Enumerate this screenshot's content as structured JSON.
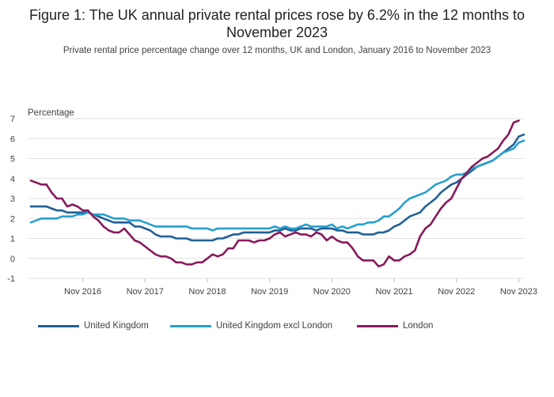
{
  "title": "Figure 1: The UK annual private rental prices rose by 6.2% in the 12 months to November 2023",
  "subtitle": "Private rental price percentage change over 12 months, UK and London, January 2016 to November 2023",
  "chart_data": {
    "type": "line",
    "ylabel": "Percentage",
    "ylim": [
      -1,
      7
    ],
    "yticks": [
      -1,
      0,
      1,
      2,
      3,
      4,
      5,
      6,
      7
    ],
    "x_tick_labels": [
      "Nov 2016",
      "Nov 2017",
      "Nov 2018",
      "Nov 2019",
      "Nov 2020",
      "Nov 2021",
      "Nov 2022",
      "Nov 2023"
    ],
    "x_tick_months": [
      10,
      22,
      34,
      46,
      58,
      70,
      82,
      94
    ],
    "x_start": "Jan 2016",
    "x_end": "Nov 2023",
    "grid": true,
    "legend_position": "bottom",
    "series": [
      {
        "name": "United Kingdom",
        "color": "#206095",
        "values": [
          2.6,
          2.6,
          2.6,
          2.6,
          2.5,
          2.4,
          2.4,
          2.3,
          2.3,
          2.3,
          2.3,
          2.3,
          2.2,
          2.1,
          2.0,
          1.9,
          1.8,
          1.8,
          1.8,
          1.8,
          1.6,
          1.6,
          1.5,
          1.4,
          1.2,
          1.1,
          1.1,
          1.1,
          1.0,
          1.0,
          1.0,
          0.9,
          0.9,
          0.9,
          0.9,
          0.9,
          1.0,
          1.0,
          1.1,
          1.2,
          1.2,
          1.3,
          1.3,
          1.3,
          1.3,
          1.3,
          1.3,
          1.4,
          1.4,
          1.5,
          1.4,
          1.4,
          1.5,
          1.5,
          1.5,
          1.4,
          1.5,
          1.5,
          1.5,
          1.4,
          1.4,
          1.3,
          1.3,
          1.3,
          1.2,
          1.2,
          1.2,
          1.3,
          1.3,
          1.4,
          1.6,
          1.7,
          1.9,
          2.1,
          2.2,
          2.3,
          2.6,
          2.8,
          3.0,
          3.3,
          3.5,
          3.7,
          3.8,
          4.0,
          4.2,
          4.4,
          4.6,
          4.7,
          4.8,
          4.9,
          5.1,
          5.3,
          5.5,
          5.7,
          6.1,
          6.2
        ]
      },
      {
        "name": "United Kingdom excl London",
        "color": "#27a0cc",
        "values": [
          1.8,
          1.9,
          2.0,
          2.0,
          2.0,
          2.0,
          2.1,
          2.1,
          2.1,
          2.2,
          2.2,
          2.3,
          2.2,
          2.2,
          2.2,
          2.1,
          2.0,
          2.0,
          2.0,
          1.9,
          1.9,
          1.9,
          1.8,
          1.7,
          1.6,
          1.6,
          1.6,
          1.6,
          1.6,
          1.6,
          1.6,
          1.5,
          1.5,
          1.5,
          1.5,
          1.4,
          1.5,
          1.5,
          1.5,
          1.5,
          1.5,
          1.5,
          1.5,
          1.5,
          1.5,
          1.5,
          1.5,
          1.6,
          1.5,
          1.6,
          1.5,
          1.5,
          1.6,
          1.7,
          1.6,
          1.6,
          1.6,
          1.6,
          1.7,
          1.5,
          1.6,
          1.5,
          1.6,
          1.7,
          1.7,
          1.8,
          1.8,
          1.9,
          2.1,
          2.1,
          2.3,
          2.5,
          2.8,
          3.0,
          3.1,
          3.2,
          3.3,
          3.5,
          3.7,
          3.8,
          3.9,
          4.1,
          4.2,
          4.2,
          4.3,
          4.5,
          4.6,
          4.7,
          4.8,
          4.9,
          5.1,
          5.3,
          5.4,
          5.5,
          5.8,
          5.9
        ]
      },
      {
        "name": "London",
        "color": "#871a5b",
        "values": [
          3.9,
          3.8,
          3.7,
          3.7,
          3.3,
          3.0,
          3.0,
          2.6,
          2.7,
          2.6,
          2.4,
          2.4,
          2.1,
          1.9,
          1.6,
          1.4,
          1.3,
          1.3,
          1.5,
          1.2,
          0.9,
          0.8,
          0.6,
          0.4,
          0.2,
          0.1,
          0.1,
          0.0,
          -0.2,
          -0.2,
          -0.3,
          -0.3,
          -0.2,
          -0.2,
          0.0,
          0.2,
          0.1,
          0.2,
          0.5,
          0.5,
          0.9,
          0.9,
          0.9,
          0.8,
          0.9,
          0.9,
          1.0,
          1.2,
          1.3,
          1.1,
          1.2,
          1.3,
          1.2,
          1.2,
          1.1,
          1.3,
          1.2,
          0.9,
          1.1,
          0.9,
          0.8,
          0.8,
          0.5,
          0.1,
          -0.1,
          -0.1,
          -0.1,
          -0.4,
          -0.3,
          0.1,
          -0.1,
          -0.1,
          0.1,
          0.2,
          0.4,
          1.1,
          1.5,
          1.7,
          2.1,
          2.5,
          2.8,
          3.0,
          3.5,
          4.0,
          4.3,
          4.6,
          4.8,
          5.0,
          5.1,
          5.3,
          5.5,
          5.9,
          6.2,
          6.8,
          6.9
        ]
      }
    ]
  }
}
